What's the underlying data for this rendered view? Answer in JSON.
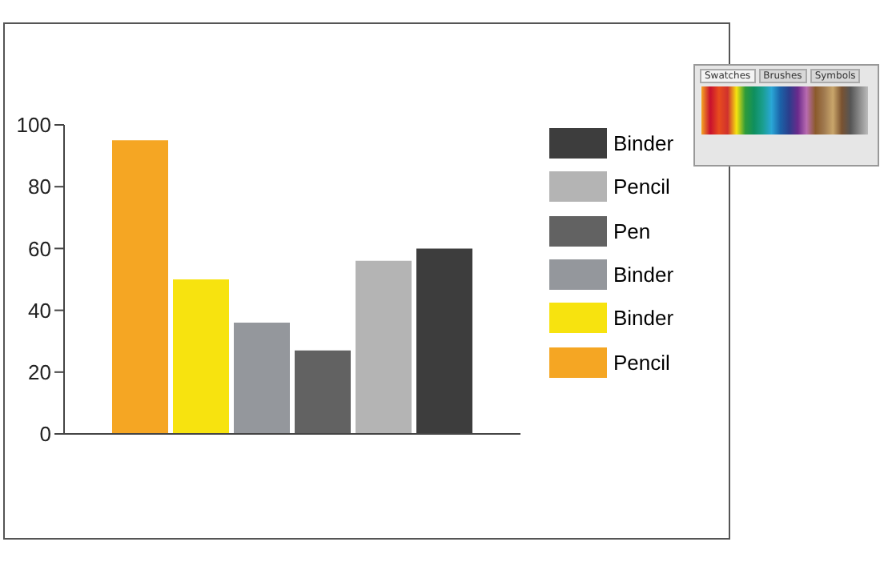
{
  "chart_data": {
    "type": "bar",
    "categories": [
      null
    ],
    "series": [
      {
        "name": "Pencil",
        "color": "#f5a623",
        "values": [
          95
        ]
      },
      {
        "name": "Binder",
        "color": "#f7e30f",
        "values": [
          50
        ]
      },
      {
        "name": "Binder",
        "color": "#94979c",
        "values": [
          36
        ]
      },
      {
        "name": "Pen",
        "color": "#626262",
        "values": [
          27
        ]
      },
      {
        "name": "Pencil",
        "color": "#b4b4b4",
        "values": [
          56
        ]
      },
      {
        "name": "Binder",
        "color": "#3d3d3d",
        "values": [
          60
        ]
      }
    ],
    "ylim": [
      0,
      100
    ],
    "yticks": [
      0,
      20,
      40,
      60,
      80,
      100
    ],
    "legend": "right",
    "annotations": [
      "Swatches",
      "Brushes",
      "Symbols"
    ]
  }
}
